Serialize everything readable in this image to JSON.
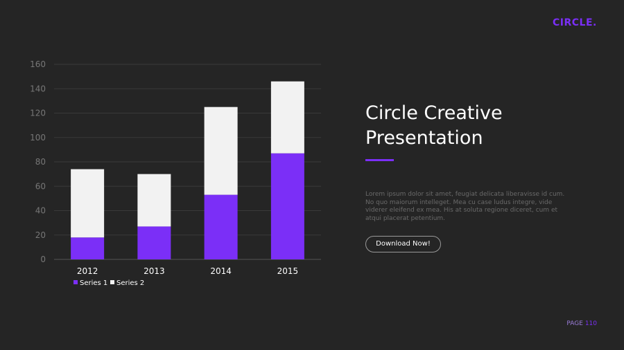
{
  "brand": {
    "logo_text": "CIRCLE."
  },
  "slide": {
    "title_line1": "Circle Creative",
    "title_line2": "Presentation",
    "body": "Lorem ipsum dolor sit amet, feugiat delicata liberavisse id cum. No quo maiorum intelleget. Mea cu case ludus integre, vide viderer eleifend ex mea. His at soluta regione diceret, cum et atqui placerat petentium.",
    "button_label": "Download Now!",
    "page_label": "PAGE",
    "page_number": "110"
  },
  "colors": {
    "series1": "#7b2ff7",
    "series2": "#f2f2f2",
    "grid": "#3a3a3a",
    "background": "#252525"
  },
  "chart_data": {
    "type": "bar",
    "stacked": true,
    "categories": [
      "2012",
      "2013",
      "2014",
      "2015"
    ],
    "series": [
      {
        "name": "Series 1",
        "values": [
          18,
          27,
          53,
          87
        ]
      },
      {
        "name": "Series 2",
        "values": [
          56,
          43,
          72,
          59
        ]
      }
    ],
    "ylim": [
      0,
      160
    ],
    "yticks": [
      0,
      20,
      40,
      60,
      80,
      100,
      120,
      140,
      160
    ],
    "legend_position": "bottom-left",
    "grid": true
  }
}
